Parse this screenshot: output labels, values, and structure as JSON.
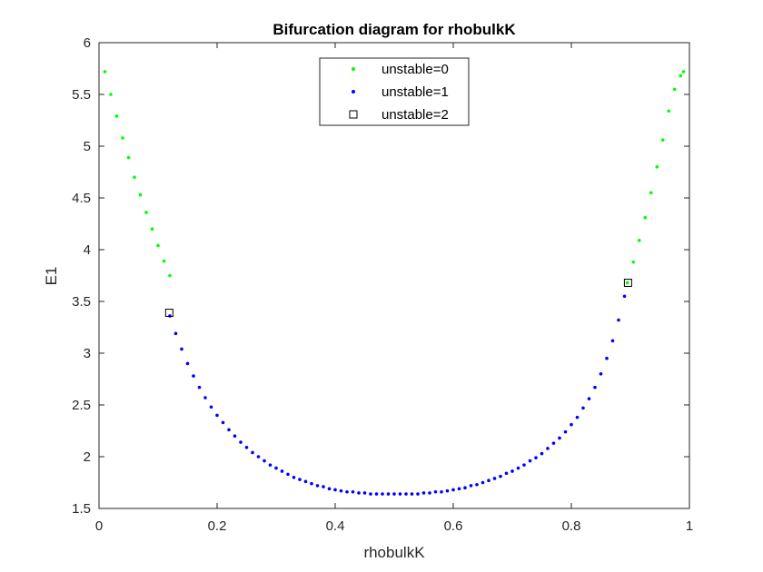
{
  "chart_data": {
    "type": "scatter",
    "title": "Bifurcation diagram for rhobulkK",
    "xlabel": "rhobulkK",
    "ylabel": "E1",
    "xlim": [
      0,
      1
    ],
    "ylim": [
      1.5,
      6
    ],
    "xticks": [
      0,
      0.2,
      0.4,
      0.6,
      0.8,
      1
    ],
    "xtick_labels": [
      "0",
      "0.2",
      "0.4",
      "0.6",
      "0.8",
      "1"
    ],
    "yticks": [
      1.5,
      2,
      2.5,
      3,
      3.5,
      4,
      4.5,
      5,
      5.5,
      6
    ],
    "ytick_labels": [
      "1.5",
      "2",
      "2.5",
      "3",
      "3.5",
      "4",
      "4.5",
      "5",
      "5.5",
      "6"
    ],
    "grid": false,
    "legend_position": "top-center",
    "series": [
      {
        "name": "unstable=0",
        "marker": "dot",
        "color": "#00ff00",
        "x": [
          0.01,
          0.02,
          0.03,
          0.04,
          0.05,
          0.06,
          0.07,
          0.08,
          0.09,
          0.1,
          0.11,
          0.12,
          0.895,
          0.905,
          0.915,
          0.925,
          0.935,
          0.945,
          0.955,
          0.965,
          0.975,
          0.985,
          0.99
        ],
        "y": [
          5.72,
          5.5,
          5.29,
          5.08,
          4.89,
          4.7,
          4.53,
          4.36,
          4.2,
          4.04,
          3.89,
          3.75,
          3.68,
          3.88,
          4.09,
          4.31,
          4.55,
          4.8,
          5.06,
          5.34,
          5.55,
          5.68,
          5.72
        ]
      },
      {
        "name": "unstable=1",
        "marker": "dot",
        "color": "#0000ff",
        "x": [
          0.12,
          0.13,
          0.14,
          0.15,
          0.16,
          0.17,
          0.18,
          0.19,
          0.2,
          0.21,
          0.22,
          0.23,
          0.24,
          0.25,
          0.26,
          0.27,
          0.28,
          0.29,
          0.3,
          0.31,
          0.32,
          0.33,
          0.34,
          0.35,
          0.36,
          0.37,
          0.38,
          0.39,
          0.4,
          0.41,
          0.42,
          0.43,
          0.44,
          0.45,
          0.46,
          0.47,
          0.48,
          0.49,
          0.5,
          0.51,
          0.52,
          0.53,
          0.54,
          0.55,
          0.56,
          0.57,
          0.58,
          0.59,
          0.6,
          0.61,
          0.62,
          0.63,
          0.64,
          0.65,
          0.66,
          0.67,
          0.68,
          0.69,
          0.7,
          0.71,
          0.72,
          0.73,
          0.74,
          0.75,
          0.76,
          0.77,
          0.78,
          0.79,
          0.8,
          0.81,
          0.82,
          0.83,
          0.84,
          0.85,
          0.86,
          0.87,
          0.88,
          0.89
        ],
        "y": [
          3.36,
          3.19,
          3.04,
          2.9,
          2.78,
          2.67,
          2.57,
          2.48,
          2.4,
          2.33,
          2.26,
          2.2,
          2.14,
          2.09,
          2.04,
          2.0,
          1.96,
          1.92,
          1.89,
          1.86,
          1.83,
          1.8,
          1.78,
          1.76,
          1.74,
          1.72,
          1.71,
          1.69,
          1.68,
          1.67,
          1.66,
          1.66,
          1.65,
          1.65,
          1.64,
          1.64,
          1.64,
          1.64,
          1.64,
          1.64,
          1.64,
          1.64,
          1.64,
          1.65,
          1.65,
          1.66,
          1.66,
          1.67,
          1.68,
          1.69,
          1.7,
          1.72,
          1.73,
          1.75,
          1.77,
          1.79,
          1.81,
          1.84,
          1.86,
          1.89,
          1.92,
          1.96,
          1.99,
          2.03,
          2.08,
          2.13,
          2.18,
          2.24,
          2.31,
          2.38,
          2.47,
          2.56,
          2.67,
          2.8,
          2.95,
          3.12,
          3.32,
          3.55
        ]
      },
      {
        "name": "unstable=2",
        "marker": "square",
        "color": "#000000",
        "x": [
          0.119,
          0.896
        ],
        "y": [
          3.39,
          3.68
        ]
      }
    ]
  }
}
